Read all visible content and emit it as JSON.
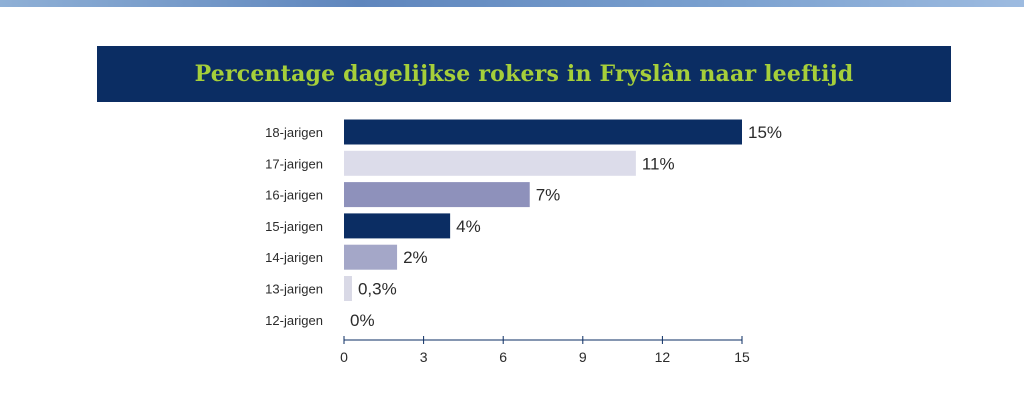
{
  "chart_data": {
    "type": "bar",
    "orientation": "horizontal",
    "title": "Percentage dagelijkse rokers in Fryslân naar leeftijd",
    "categories": [
      "18-jarigen",
      "17-jarigen",
      "16-jarigen",
      "15-jarigen",
      "14-jarigen",
      "13-jarigen",
      "12-jarigen"
    ],
    "values": [
      15,
      11,
      7,
      4,
      2,
      0.3,
      0
    ],
    "value_labels": [
      "15%",
      "11%",
      "7%",
      "4%",
      "2%",
      "0,3%",
      "0%"
    ],
    "bar_colors": [
      "#0b2d63",
      "#dcdcea",
      "#8e91bb",
      "#0b2d63",
      "#a4a7c8",
      "#d9d9e6",
      "#d9d9e6"
    ],
    "xlim": [
      0,
      15
    ],
    "xticks": [
      0,
      3,
      6,
      9,
      12,
      15
    ],
    "xtick_labels": [
      "0",
      "3",
      "6",
      "9",
      "12",
      "15"
    ],
    "grid": false,
    "xlabel": "",
    "ylabel": ""
  },
  "colors": {
    "title_bar": "#0b2d63",
    "title_text": "#a6cf3a",
    "axis": "#0b2d63"
  }
}
